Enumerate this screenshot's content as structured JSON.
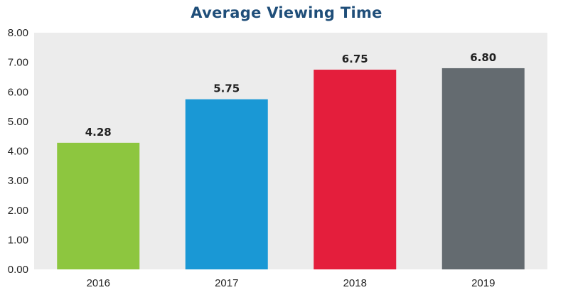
{
  "chart_data": {
    "type": "bar",
    "title": "Average Viewing Time",
    "categories": [
      "2016",
      "2017",
      "2018",
      "2019"
    ],
    "values": [
      4.28,
      5.75,
      6.75,
      6.8
    ],
    "data_labels": [
      "4.28",
      "5.75",
      "6.75",
      "6.80"
    ],
    "yticks": [
      "0.00",
      "1.00",
      "2.00",
      "3.00",
      "4.00",
      "5.00",
      "6.00",
      "7.00",
      "8.00"
    ],
    "ylim": [
      0,
      8
    ],
    "xlabel": "",
    "ylabel": "",
    "grid": false,
    "legend": "none",
    "colors": [
      "#8dc63f",
      "#1a98d5",
      "#e41e3c",
      "#646b70"
    ],
    "plot_background": "#ececec",
    "title_color": "#1f4e79"
  }
}
